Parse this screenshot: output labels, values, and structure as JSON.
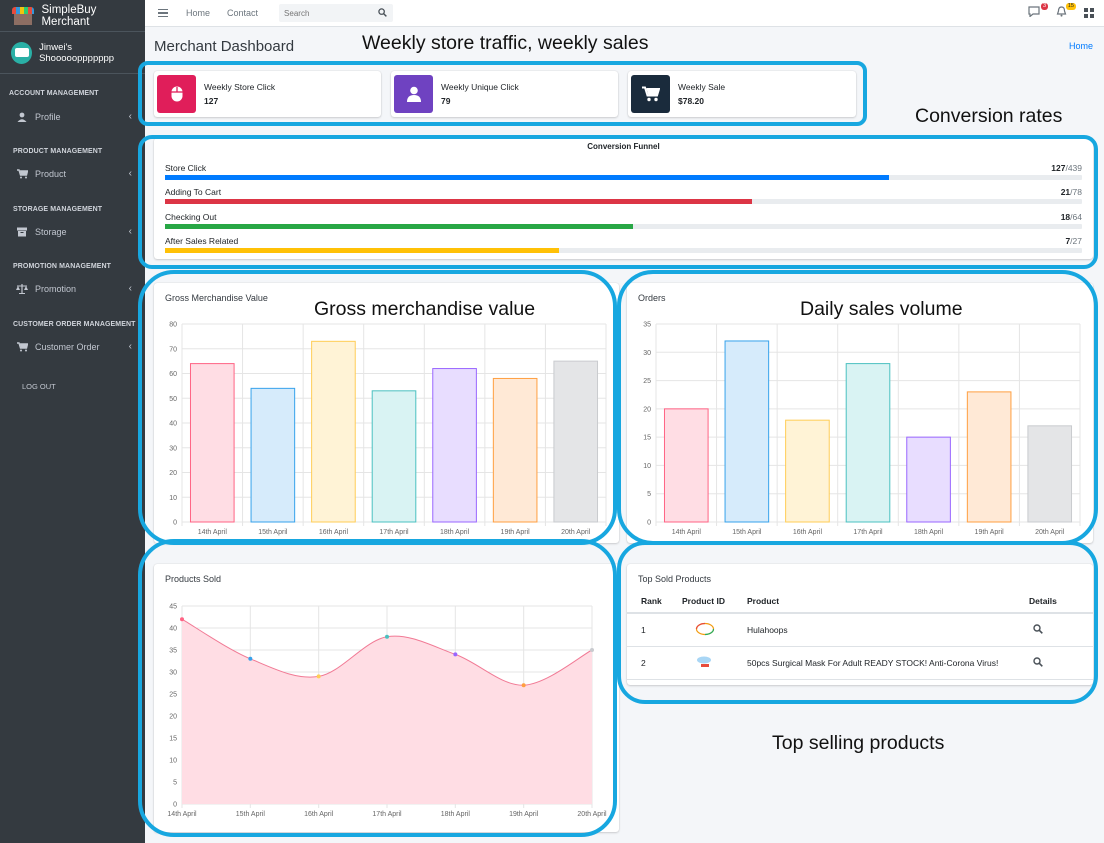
{
  "app": {
    "title": "SimpleBuy Merchant",
    "shop_name": "Jinwei's Shoooooppppppp"
  },
  "sidebar": {
    "sections": [
      {
        "header": "ACCOUNT MANAGEMENT",
        "item": "Profile",
        "icon": "user-icon"
      },
      {
        "header": "PRODUCT MANAGEMENT",
        "item": "Product",
        "icon": "cart-icon"
      },
      {
        "header": "STORAGE MANAGEMENT",
        "item": "Storage",
        "icon": "box-icon"
      },
      {
        "header": "PROMOTION MANAGEMENT",
        "item": "Promotion",
        "icon": "balance-scale-icon"
      },
      {
        "header": "CUSTOMER ORDER MANAGEMENT",
        "item": "Customer Order",
        "icon": "cart-icon"
      }
    ],
    "logout": "LOG OUT"
  },
  "topbar": {
    "home": "Home",
    "contact": "Contact",
    "search_placeholder": "Search",
    "messages_badge": "3",
    "notifications_badge": "15"
  },
  "page": {
    "title": "Merchant Dashboard",
    "breadcrumb": "Home"
  },
  "info_boxes": [
    {
      "label": "Weekly Store Click",
      "value": "127",
      "color": "#e01e5a",
      "icon": "mouse-icon"
    },
    {
      "label": "Weekly Unique Click",
      "value": "79",
      "color": "#6f42c1",
      "icon": "user-icon"
    },
    {
      "label": "Weekly Sale",
      "value": "$78.20",
      "color": "#1a2b3c",
      "icon": "cart-icon"
    }
  ],
  "funnel": {
    "title": "Conversion Funnel",
    "rows": [
      {
        "label": "Store Click",
        "value": "127",
        "total": "/439",
        "fraction": 0.79,
        "color": "#007bff"
      },
      {
        "label": "Adding To Cart",
        "value": "21",
        "total": "/78",
        "fraction": 0.64,
        "color": "#dc3545"
      },
      {
        "label": "Checking Out",
        "value": "18",
        "total": "/64",
        "fraction": 0.51,
        "color": "#28a745"
      },
      {
        "label": "After Sales Related",
        "value": "7",
        "total": "/27",
        "fraction": 0.43,
        "color": "#ffc107"
      }
    ]
  },
  "annotations": {
    "traffic": "Weekly store traffic, weekly sales",
    "conversion": "Conversion rates",
    "gmv": "Gross merchandise value",
    "daily": "Daily sales volume",
    "top": "Top selling products"
  },
  "top_sold": {
    "title": "Top Sold Products",
    "headers": [
      "Rank",
      "Product ID",
      "Product",
      "Details"
    ],
    "rows": [
      {
        "rank": "1",
        "product": "Hulahoops"
      },
      {
        "rank": "2",
        "product": "50pcs Surgical Mask For Adult READY STOCK! Anti-Corona Virus!"
      }
    ]
  },
  "chart_data": [
    {
      "type": "bar",
      "title": "Gross Merchandise Value",
      "categories": [
        "14th April",
        "15th April",
        "16th April",
        "17th April",
        "18th April",
        "19th April",
        "20th April"
      ],
      "values": [
        64,
        54,
        73,
        53,
        62,
        58,
        65
      ],
      "ylim": [
        0,
        80
      ],
      "yticks": [
        0,
        10,
        20,
        30,
        40,
        50,
        60,
        70,
        80
      ],
      "fills": [
        "#ffdde4",
        "#d6ebfb",
        "#fff3d6",
        "#d9f3f3",
        "#e8ddff",
        "#ffe9d6",
        "#e4e5e7"
      ],
      "strokes": [
        "#ff6384",
        "#36a2eb",
        "#ffcd56",
        "#4bc0c0",
        "#9966ff",
        "#ff9f40",
        "#c9cbcf"
      ]
    },
    {
      "type": "bar",
      "title": "Orders",
      "categories": [
        "14th April",
        "15th April",
        "16th April",
        "17th April",
        "18th April",
        "19th April",
        "20th April"
      ],
      "values": [
        20,
        32,
        18,
        28,
        15,
        23,
        17
      ],
      "ylim": [
        0,
        35
      ],
      "yticks": [
        0,
        5,
        10,
        15,
        20,
        25,
        30,
        35
      ],
      "fills": [
        "#ffdde4",
        "#d6ebfb",
        "#fff3d6",
        "#d9f3f3",
        "#e8ddff",
        "#ffe9d6",
        "#e4e5e7"
      ],
      "strokes": [
        "#ff6384",
        "#36a2eb",
        "#ffcd56",
        "#4bc0c0",
        "#9966ff",
        "#ff9f40",
        "#c9cbcf"
      ]
    },
    {
      "type": "area",
      "title": "Products Sold",
      "categories": [
        "14th April",
        "15th April",
        "16th April",
        "17th April",
        "18th April",
        "19th April",
        "20th April"
      ],
      "values": [
        42,
        33,
        29,
        38,
        34,
        27,
        35
      ],
      "ylim": [
        0,
        45
      ],
      "yticks": [
        0,
        5,
        10,
        15,
        20,
        25,
        30,
        35,
        40,
        45
      ],
      "fill": "#ffdde4",
      "stroke": "#f17a95",
      "point_colors": [
        "#ff6384",
        "#36a2eb",
        "#ffcd56",
        "#4bc0c0",
        "#9966ff",
        "#ff9f40",
        "#c9cbcf"
      ]
    }
  ]
}
